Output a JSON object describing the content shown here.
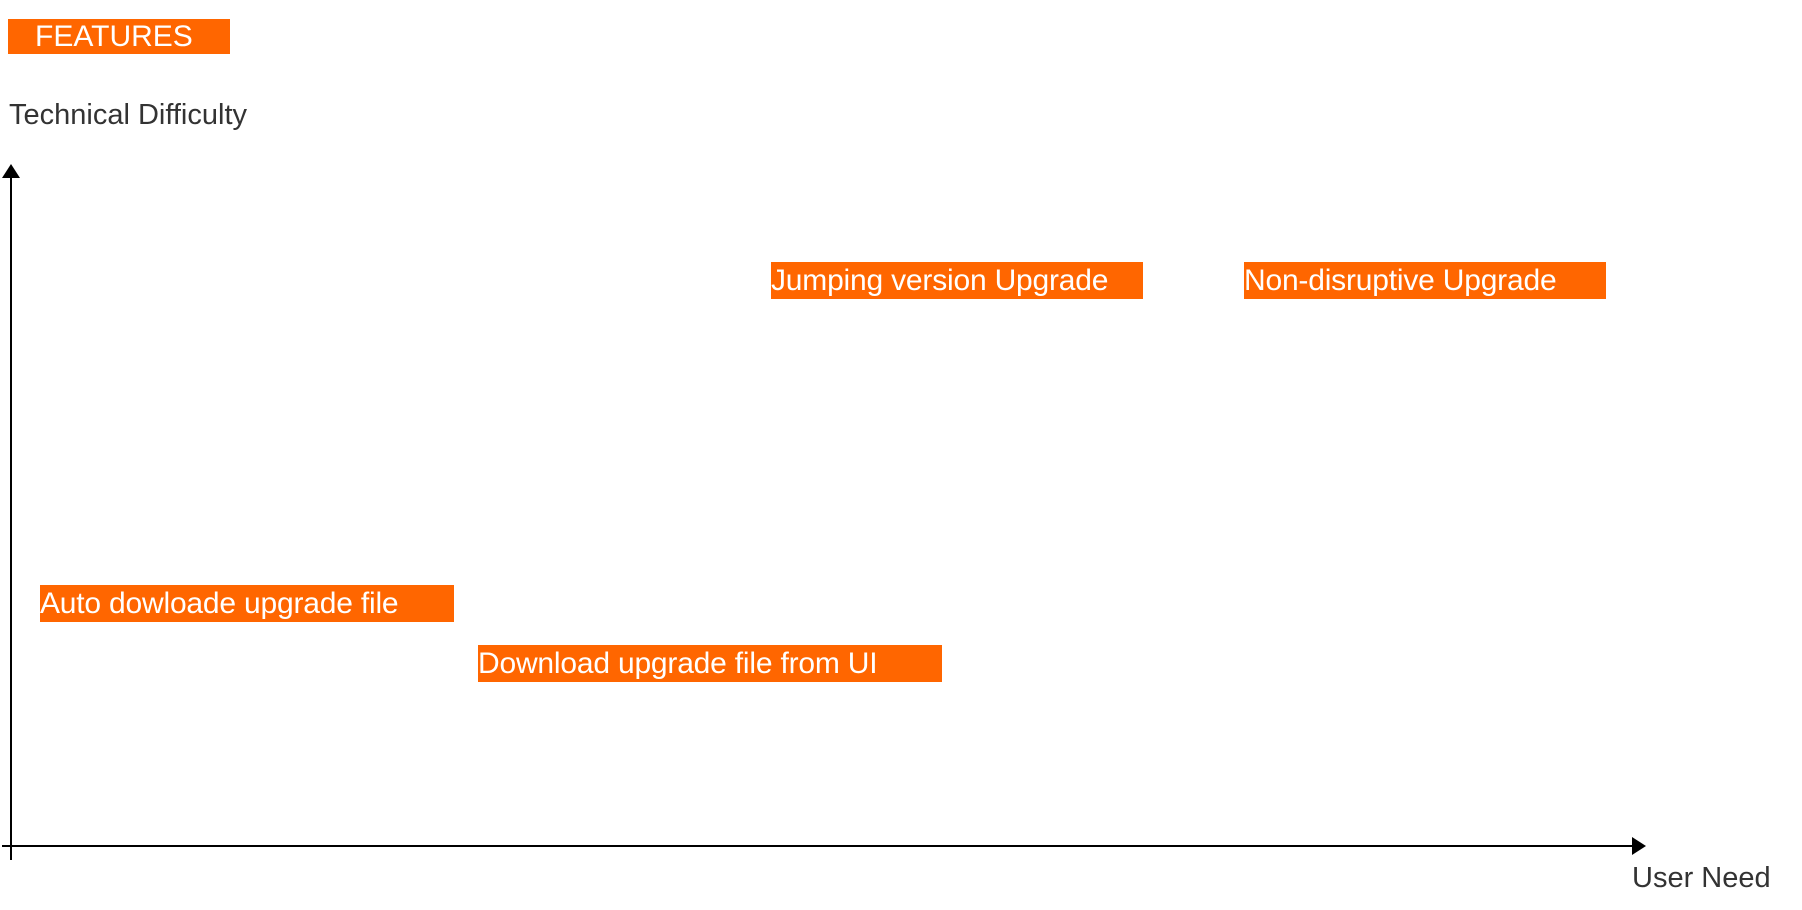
{
  "header": {
    "title": "FEATURES"
  },
  "axes": {
    "y_label": "Technical Difficulty",
    "x_label": "User Need"
  },
  "features": [
    {
      "label": "Auto dowloade upgrade file"
    },
    {
      "label": "Download upgrade file from UI"
    },
    {
      "label": "Jumping version Upgrade"
    },
    {
      "label": "Non-disruptive Upgrade"
    }
  ],
  "colors": {
    "accent": "#ff6600",
    "axis": "#000000",
    "text": "#333333"
  }
}
